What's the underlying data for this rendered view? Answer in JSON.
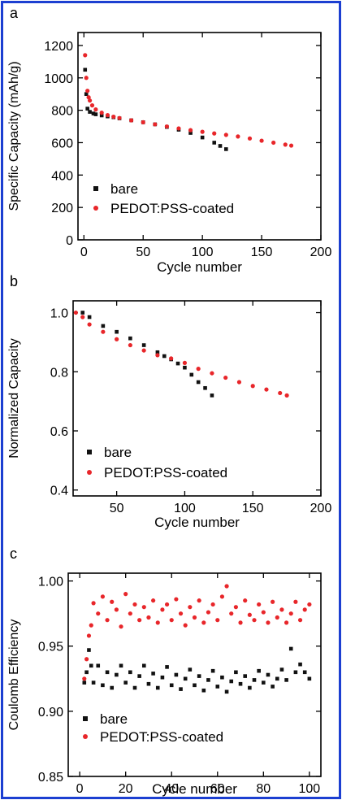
{
  "chart_data": [
    {
      "panel_label": "a",
      "type": "scatter",
      "xlabel": "Cycle number",
      "ylabel": "Specific Capacity (mAh/g)",
      "xlim": [
        -5,
        200
      ],
      "ylim": [
        0,
        1280
      ],
      "xticks": [
        "0",
        "50",
        "100",
        "150",
        "200"
      ],
      "yticks": [
        "0",
        "200",
        "400",
        "600",
        "800",
        "1000",
        "1200"
      ],
      "xtick_values": [
        0,
        50,
        100,
        150,
        200
      ],
      "ytick_values": [
        0,
        200,
        400,
        600,
        800,
        1000,
        1200
      ],
      "legend": {
        "position": "bottom-left",
        "entries": [
          "bare",
          "PEDOT:PSS-coated"
        ]
      },
      "series": [
        {
          "name": "bare",
          "color": "#111111",
          "marker": "square",
          "x": [
            1,
            2,
            3,
            5,
            8,
            10,
            15,
            20,
            25,
            30,
            40,
            50,
            60,
            70,
            80,
            90,
            100,
            110,
            115,
            120
          ],
          "y": [
            1050,
            900,
            810,
            790,
            780,
            775,
            768,
            762,
            757,
            750,
            738,
            726,
            713,
            697,
            680,
            660,
            632,
            600,
            580,
            560
          ]
        },
        {
          "name": "PEDOT:PSS-coated",
          "color": "#e8262a",
          "marker": "circle",
          "x": [
            1,
            2,
            3,
            4,
            5,
            7,
            10,
            15,
            20,
            25,
            30,
            40,
            50,
            60,
            70,
            80,
            90,
            100,
            110,
            120,
            130,
            140,
            150,
            160,
            170,
            175
          ],
          "y": [
            1140,
            1000,
            920,
            880,
            860,
            830,
            805,
            785,
            770,
            760,
            752,
            738,
            726,
            713,
            700,
            688,
            677,
            667,
            657,
            648,
            638,
            626,
            612,
            600,
            588,
            582
          ]
        }
      ]
    },
    {
      "panel_label": "b",
      "type": "scatter",
      "xlabel": "Cycle number",
      "ylabel": "Normalized Capacity",
      "xlim": [
        18,
        200
      ],
      "ylim": [
        0.38,
        1.04
      ],
      "xticks": [
        "50",
        "100",
        "150",
        "200"
      ],
      "yticks": [
        "0.4",
        "0.6",
        "0.8",
        "1.0"
      ],
      "xtick_values": [
        50,
        100,
        150,
        200
      ],
      "ytick_values": [
        0.4,
        0.6,
        0.8,
        1.0
      ],
      "legend": {
        "position": "bottom-left",
        "entries": [
          "bare",
          "PEDOT:PSS-coated"
        ]
      },
      "series": [
        {
          "name": "bare",
          "color": "#111111",
          "marker": "square",
          "x": [
            25,
            30,
            40,
            50,
            60,
            70,
            80,
            85,
            90,
            95,
            100,
            105,
            110,
            115,
            120
          ],
          "y": [
            1.0,
            0.985,
            0.955,
            0.935,
            0.913,
            0.89,
            0.866,
            0.853,
            0.842,
            0.828,
            0.814,
            0.79,
            0.765,
            0.745,
            0.72
          ]
        },
        {
          "name": "PEDOT:PSS-coated",
          "color": "#e8262a",
          "marker": "circle",
          "x": [
            20,
            25,
            30,
            40,
            50,
            60,
            70,
            80,
            90,
            100,
            110,
            120,
            130,
            140,
            150,
            160,
            170,
            175
          ],
          "y": [
            1.0,
            0.985,
            0.96,
            0.935,
            0.91,
            0.89,
            0.872,
            0.856,
            0.845,
            0.83,
            0.81,
            0.795,
            0.78,
            0.765,
            0.752,
            0.74,
            0.728,
            0.72
          ]
        }
      ]
    },
    {
      "panel_label": "c",
      "type": "scatter",
      "xlabel": "Cycle number",
      "ylabel": "Coulomb Efficiency",
      "xlim": [
        -5,
        105
      ],
      "ylim": [
        0.85,
        1.006
      ],
      "xticks": [
        "0",
        "20",
        "40",
        "60",
        "80",
        "100"
      ],
      "yticks": [
        "0.85",
        "0.90",
        "0.95",
        "1.00"
      ],
      "xtick_values": [
        0,
        20,
        40,
        60,
        80,
        100
      ],
      "ytick_values": [
        0.85,
        0.9,
        0.95,
        1.0
      ],
      "legend": {
        "position": "bottom-left",
        "entries": [
          "bare",
          "PEDOT:PSS-coated"
        ]
      },
      "series": [
        {
          "name": "bare",
          "color": "#111111",
          "marker": "square",
          "x": [
            2,
            3,
            4,
            5,
            6,
            8,
            10,
            12,
            14,
            16,
            18,
            20,
            22,
            24,
            26,
            28,
            30,
            32,
            34,
            36,
            38,
            40,
            42,
            44,
            46,
            48,
            50,
            52,
            54,
            56,
            58,
            60,
            62,
            64,
            66,
            68,
            70,
            72,
            74,
            76,
            78,
            80,
            82,
            84,
            86,
            88,
            90,
            92,
            94,
            96,
            98,
            100
          ],
          "y": [
            0.922,
            0.93,
            0.947,
            0.935,
            0.922,
            0.935,
            0.92,
            0.93,
            0.918,
            0.928,
            0.935,
            0.922,
            0.93,
            0.918,
            0.927,
            0.935,
            0.921,
            0.929,
            0.918,
            0.926,
            0.934,
            0.92,
            0.928,
            0.917,
            0.925,
            0.932,
            0.92,
            0.927,
            0.916,
            0.924,
            0.931,
            0.919,
            0.926,
            0.915,
            0.923,
            0.93,
            0.921,
            0.927,
            0.918,
            0.924,
            0.931,
            0.922,
            0.928,
            0.919,
            0.925,
            0.932,
            0.924,
            0.948,
            0.93,
            0.936,
            0.93,
            0.925
          ]
        },
        {
          "name": "PEDOT:PSS-coated",
          "color": "#e8262a",
          "marker": "circle",
          "x": [
            2,
            3,
            4,
            5,
            6,
            8,
            10,
            12,
            14,
            16,
            18,
            20,
            22,
            24,
            26,
            28,
            30,
            32,
            34,
            36,
            38,
            40,
            42,
            44,
            46,
            48,
            50,
            52,
            54,
            56,
            58,
            60,
            62,
            64,
            66,
            68,
            70,
            72,
            74,
            76,
            78,
            80,
            82,
            84,
            86,
            88,
            90,
            92,
            94,
            96,
            98,
            100
          ],
          "y": [
            0.925,
            0.94,
            0.958,
            0.966,
            0.983,
            0.975,
            0.988,
            0.97,
            0.984,
            0.978,
            0.965,
            0.99,
            0.975,
            0.982,
            0.97,
            0.98,
            0.972,
            0.985,
            0.968,
            0.978,
            0.982,
            0.97,
            0.986,
            0.975,
            0.966,
            0.98,
            0.972,
            0.985,
            0.968,
            0.976,
            0.982,
            0.97,
            0.988,
            0.996,
            0.975,
            0.98,
            0.968,
            0.985,
            0.974,
            0.97,
            0.982,
            0.976,
            0.968,
            0.984,
            0.972,
            0.978,
            0.968,
            0.975,
            0.984,
            0.97,
            0.978,
            0.982
          ]
        }
      ]
    }
  ]
}
